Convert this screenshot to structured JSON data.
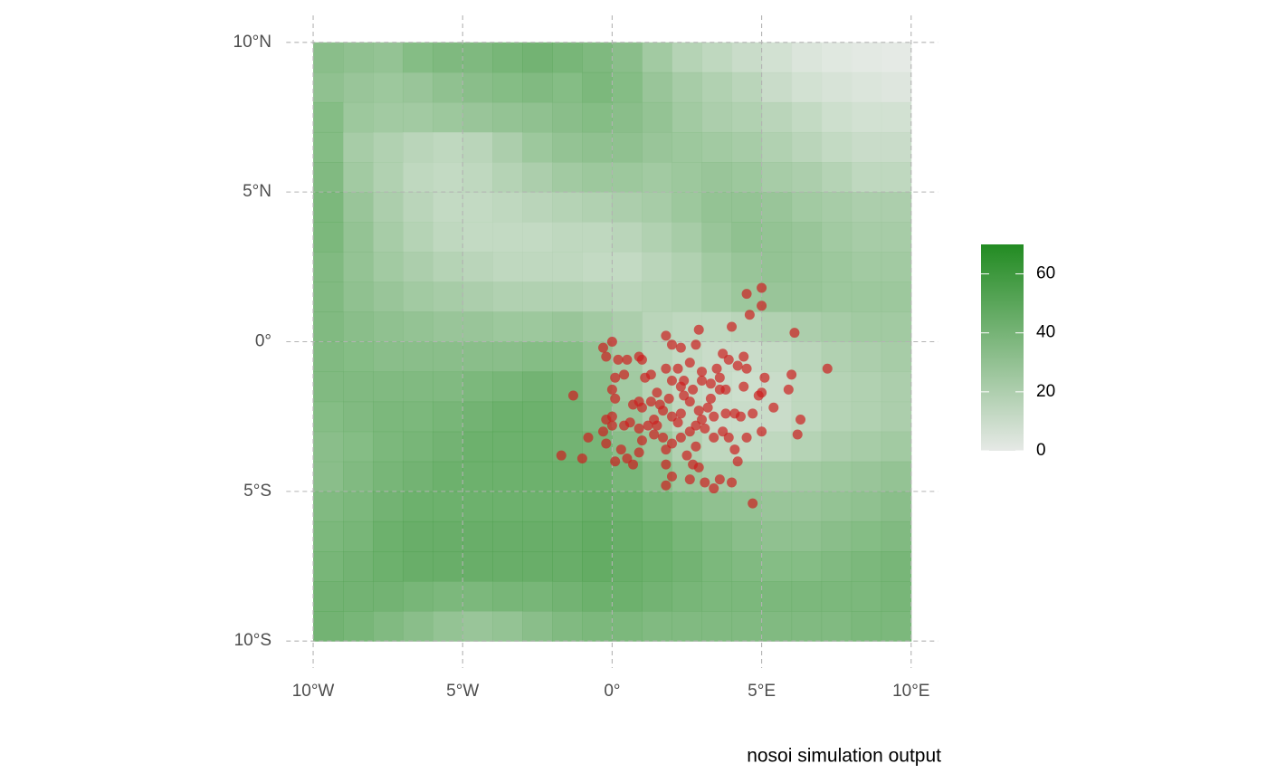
{
  "chart_data": {
    "type": "raster-scatter",
    "caption": "nosoi simulation output",
    "xlim": [
      -10.9,
      10.9
    ],
    "ylim": [
      -10.9,
      10.9
    ],
    "xticks": [
      {
        "value": -10,
        "label": "10°W"
      },
      {
        "value": -5,
        "label": "5°W"
      },
      {
        "value": 0,
        "label": "0°"
      },
      {
        "value": 5,
        "label": "5°E"
      },
      {
        "value": 10,
        "label": "10°E"
      }
    ],
    "yticks": [
      {
        "value": -10,
        "label": "10°S"
      },
      {
        "value": -5,
        "label": "5°S"
      },
      {
        "value": 0,
        "label": "0°"
      },
      {
        "value": 5,
        "label": "5°N"
      },
      {
        "value": 10,
        "label": "10°N"
      }
    ],
    "grid": true,
    "raster": {
      "lon": [
        -9.5,
        -8.5,
        -7.5,
        -6.5,
        -5.5,
        -4.5,
        -3.5,
        -2.5,
        -1.5,
        -0.5,
        0.5,
        1.5,
        2.5,
        3.5,
        4.5,
        5.5,
        6.5,
        7.5,
        8.5,
        9.5
      ],
      "lat": [
        9.5,
        8.5,
        7.5,
        6.5,
        5.5,
        4.5,
        3.5,
        2.5,
        1.5,
        0.5,
        -0.5,
        -1.5,
        -2.5,
        -3.5,
        -4.5,
        -5.5,
        -6.5,
        -7.5,
        -8.5,
        -9.5
      ],
      "values": [
        [
          40,
          38,
          36,
          42,
          45,
          45,
          48,
          50,
          48,
          45,
          40,
          30,
          22,
          18,
          14,
          10,
          6,
          4,
          3,
          2
        ],
        [
          38,
          34,
          32,
          34,
          38,
          40,
          42,
          44,
          42,
          46,
          42,
          34,
          28,
          24,
          20,
          14,
          10,
          8,
          6,
          5
        ],
        [
          42,
          32,
          30,
          30,
          32,
          34,
          36,
          38,
          40,
          42,
          40,
          36,
          30,
          26,
          24,
          20,
          16,
          12,
          10,
          10
        ],
        [
          42,
          28,
          24,
          20,
          18,
          20,
          26,
          32,
          36,
          38,
          38,
          34,
          32,
          30,
          28,
          24,
          20,
          16,
          14,
          14
        ],
        [
          44,
          30,
          24,
          18,
          16,
          18,
          22,
          26,
          30,
          32,
          32,
          30,
          32,
          34,
          32,
          28,
          26,
          22,
          18,
          18
        ],
        [
          46,
          34,
          26,
          20,
          16,
          16,
          18,
          20,
          22,
          24,
          26,
          28,
          32,
          36,
          36,
          34,
          30,
          28,
          26,
          26
        ],
        [
          46,
          36,
          28,
          22,
          18,
          16,
          16,
          16,
          18,
          18,
          20,
          24,
          28,
          34,
          38,
          36,
          34,
          30,
          28,
          28
        ],
        [
          44,
          36,
          30,
          26,
          22,
          20,
          18,
          18,
          18,
          16,
          16,
          20,
          24,
          30,
          34,
          36,
          34,
          32,
          30,
          30
        ],
        [
          44,
          38,
          34,
          30,
          28,
          26,
          24,
          24,
          24,
          22,
          20,
          22,
          24,
          28,
          32,
          34,
          34,
          32,
          32,
          32
        ],
        [
          44,
          40,
          38,
          36,
          34,
          34,
          32,
          32,
          34,
          30,
          26,
          20,
          18,
          18,
          20,
          24,
          26,
          28,
          30,
          30
        ],
        [
          44,
          42,
          40,
          40,
          40,
          40,
          40,
          42,
          42,
          36,
          28,
          20,
          16,
          14,
          14,
          16,
          20,
          24,
          26,
          28
        ],
        [
          44,
          44,
          44,
          44,
          44,
          46,
          48,
          50,
          48,
          40,
          30,
          22,
          16,
          14,
          12,
          14,
          18,
          22,
          24,
          26
        ],
        [
          42,
          44,
          46,
          46,
          48,
          50,
          52,
          52,
          50,
          44,
          34,
          26,
          18,
          14,
          14,
          14,
          18,
          22,
          24,
          26
        ],
        [
          40,
          42,
          46,
          48,
          50,
          52,
          52,
          52,
          50,
          48,
          40,
          32,
          24,
          18,
          16,
          18,
          22,
          26,
          28,
          30
        ],
        [
          40,
          44,
          48,
          50,
          52,
          52,
          52,
          52,
          52,
          52,
          48,
          40,
          32,
          28,
          28,
          28,
          30,
          32,
          34,
          36
        ],
        [
          44,
          46,
          50,
          52,
          52,
          52,
          52,
          52,
          52,
          54,
          52,
          48,
          42,
          38,
          36,
          34,
          34,
          36,
          38,
          40
        ],
        [
          46,
          48,
          52,
          54,
          54,
          54,
          54,
          54,
          54,
          56,
          54,
          52,
          48,
          44,
          40,
          38,
          38,
          40,
          42,
          44
        ],
        [
          48,
          50,
          52,
          54,
          54,
          54,
          54,
          54,
          54,
          56,
          54,
          52,
          50,
          46,
          44,
          42,
          42,
          44,
          46,
          48
        ],
        [
          50,
          50,
          50,
          48,
          46,
          46,
          48,
          48,
          50,
          52,
          52,
          50,
          48,
          46,
          46,
          46,
          46,
          46,
          46,
          48
        ],
        [
          50,
          48,
          44,
          40,
          36,
          34,
          36,
          40,
          44,
          46,
          46,
          44,
          44,
          44,
          44,
          44,
          44,
          44,
          46,
          46
        ]
      ]
    },
    "colorbar": {
      "lim": [
        0,
        70
      ],
      "ticks": [
        0,
        20,
        40,
        60
      ],
      "low": "#e6e9e6",
      "high": "#228b22"
    },
    "points": {
      "color": "#cc2020",
      "x": [
        0,
        -0.3,
        -0.2,
        0.2,
        0.5,
        0.9,
        1.0,
        1.8,
        2.0,
        2.3,
        2.8,
        2.9,
        4.0,
        4.5,
        5.0,
        4.6,
        5.0,
        6.1,
        7.2,
        6.0,
        5.9,
        5.1,
        4.4,
        4.5,
        4.2,
        3.7,
        3.9,
        3.5,
        3.6,
        3.0,
        2.6,
        2.2,
        1.8,
        1.3,
        1.1,
        0.4,
        0.1,
        0,
        0.1,
        -1.3,
        0.9,
        0.7,
        1.0,
        1.3,
        1.6,
        1.9,
        2.3,
        2.4,
        2.7,
        3.0,
        3.3,
        3.6,
        3.8,
        4.4,
        4.9,
        5.0,
        5.4,
        4.7,
        4.3,
        4.1,
        3.8,
        3.4,
        3.2,
        2.9,
        2.6,
        2.3,
        2.0,
        1.7,
        1.4,
        1.2,
        0.9,
        0.6,
        0.4,
        0,
        0,
        -0.2,
        -0.3,
        -0.8,
        -0.2,
        0.3,
        0.5,
        0.7,
        0.9,
        1.0,
        1.4,
        1.7,
        1.8,
        2.0,
        2.3,
        2.6,
        2.8,
        3.1,
        3.4,
        3.7,
        3.9,
        4.1,
        4.2,
        4.5,
        6.3,
        6.2,
        5.0,
        2.8,
        2.5,
        2.7,
        2.9,
        2.6,
        3.1,
        3.4,
        3.6,
        4.0,
        1.8,
        2.0,
        1.8,
        -1.0,
        -1.7,
        0.1,
        4.7,
        1.5,
        2.2,
        3.0,
        3.3,
        1.5,
        2.0,
        2.4
      ],
      "y": [
        0,
        -0.2,
        -0.5,
        -0.6,
        -0.6,
        -0.5,
        -0.6,
        0.2,
        -0.1,
        -0.2,
        -0.1,
        0.4,
        0.5,
        1.6,
        1.8,
        0.9,
        1.2,
        0.3,
        -0.9,
        -1.1,
        -1.6,
        -1.2,
        -0.5,
        -0.9,
        -0.8,
        -0.4,
        -0.6,
        -0.9,
        -1.2,
        -1.0,
        -0.7,
        -0.9,
        -0.9,
        -1.1,
        -1.2,
        -1.1,
        -1.2,
        -1.6,
        -1.9,
        -1.8,
        -2.0,
        -2.1,
        -2.2,
        -2.0,
        -2.1,
        -1.9,
        -1.5,
        -1.8,
        -1.6,
        -1.3,
        -1.4,
        -1.6,
        -1.6,
        -1.5,
        -1.8,
        -1.7,
        -2.2,
        -2.4,
        -2.5,
        -2.4,
        -2.4,
        -2.5,
        -2.2,
        -2.3,
        -2.0,
        -2.4,
        -2.5,
        -2.3,
        -2.6,
        -2.8,
        -2.9,
        -2.7,
        -2.8,
        -2.5,
        -2.8,
        -2.6,
        -3.0,
        -3.2,
        -3.4,
        -3.6,
        -3.9,
        -4.1,
        -3.7,
        -3.3,
        -3.1,
        -3.2,
        -3.6,
        -3.4,
        -3.2,
        -3.0,
        -2.8,
        -2.9,
        -3.2,
        -3.0,
        -3.2,
        -3.6,
        -4.0,
        -3.2,
        -2.6,
        -3.1,
        -3.0,
        -3.5,
        -3.8,
        -4.1,
        -4.2,
        -4.6,
        -4.7,
        -4.9,
        -4.6,
        -4.7,
        -4.1,
        -4.5,
        -4.8,
        -3.9,
        -3.8,
        -4.0,
        -5.4,
        -2.8,
        -2.7,
        -2.6,
        -1.9,
        -1.7,
        -1.3,
        -1.3
      ]
    }
  }
}
